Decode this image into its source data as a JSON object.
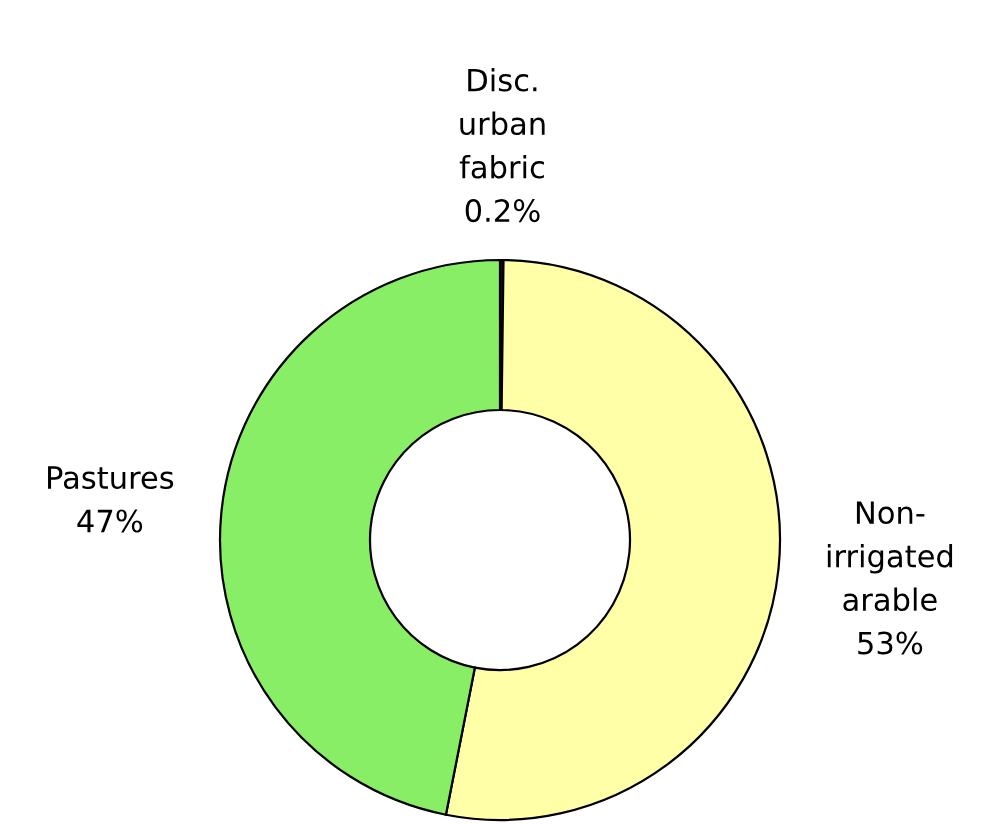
{
  "chart_data": {
    "type": "donut",
    "categories": [
      "Disc.\nurban\nfabric",
      "Non-\nirrigated\narable",
      "Pastures"
    ],
    "values": [
      0.2,
      53,
      47
    ],
    "value_labels": [
      "0.2%",
      "53%",
      "47%"
    ],
    "colors": [
      "#301010",
      "#ffffa8",
      "#88ee66"
    ],
    "legend": false
  }
}
